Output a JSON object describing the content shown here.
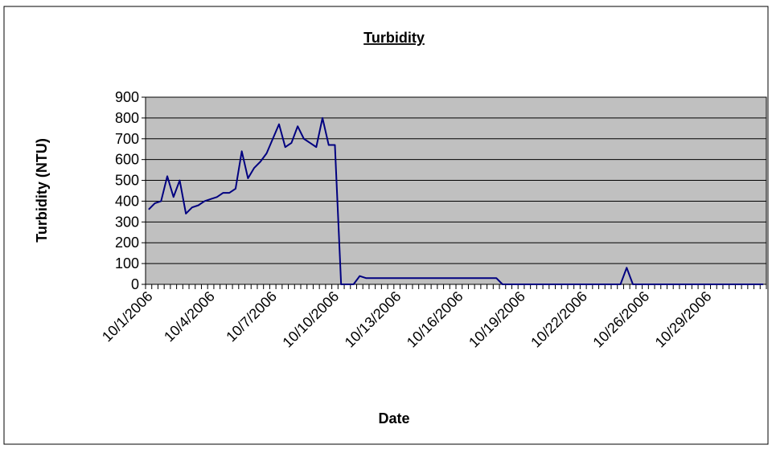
{
  "chart_data": {
    "type": "line",
    "title": "Turbidity",
    "x_label": "Date",
    "y_label": "Turbidity (NTU)",
    "categories": [
      "10/1/2006",
      null,
      null,
      null,
      null,
      null,
      null,
      null,
      null,
      null,
      "10/4/2006",
      null,
      null,
      null,
      null,
      null,
      null,
      null,
      null,
      null,
      "10/7/2006",
      null,
      null,
      null,
      null,
      null,
      null,
      null,
      null,
      null,
      "10/10/2006",
      null,
      null,
      null,
      null,
      null,
      null,
      null,
      null,
      null,
      "10/13/2006",
      null,
      null,
      null,
      null,
      null,
      null,
      null,
      null,
      null,
      "10/16/2006",
      null,
      null,
      null,
      null,
      null,
      null,
      null,
      null,
      null,
      "10/19/2006",
      null,
      null,
      null,
      null,
      null,
      null,
      null,
      null,
      null,
      "10/22/2006",
      null,
      null,
      null,
      null,
      null,
      null,
      null,
      null,
      null,
      "10/26/2006",
      null,
      null,
      null,
      null,
      null,
      null,
      null,
      null,
      null,
      "10/29/2006",
      null,
      null,
      null,
      null,
      null,
      null,
      null,
      null,
      null
    ],
    "values": [
      360,
      390,
      400,
      520,
      420,
      500,
      340,
      370,
      380,
      400,
      410,
      420,
      440,
      440,
      460,
      640,
      510,
      560,
      590,
      630,
      700,
      770,
      660,
      680,
      760,
      700,
      680,
      660,
      800,
      670,
      670,
      0,
      0,
      0,
      40,
      30,
      30,
      30,
      30,
      30,
      30,
      30,
      30,
      30,
      30,
      30,
      30,
      30,
      30,
      30,
      30,
      30,
      30,
      30,
      30,
      30,
      30,
      0,
      0,
      0,
      0,
      0,
      0,
      0,
      0,
      0,
      0,
      0,
      0,
      0,
      0,
      0,
      0,
      0,
      0,
      0,
      0,
      80,
      0,
      0,
      0,
      0,
      0,
      0,
      0,
      0,
      0,
      0,
      0,
      0,
      0,
      0,
      0,
      0,
      0,
      0,
      0,
      0,
      0,
      0
    ],
    "color": "#000080",
    "ylim": [
      0,
      900
    ],
    "yticks": [
      0,
      100,
      200,
      300,
      400,
      500,
      600,
      700,
      800,
      900
    ],
    "grid": true,
    "plot_background": "#c0c0c0"
  }
}
